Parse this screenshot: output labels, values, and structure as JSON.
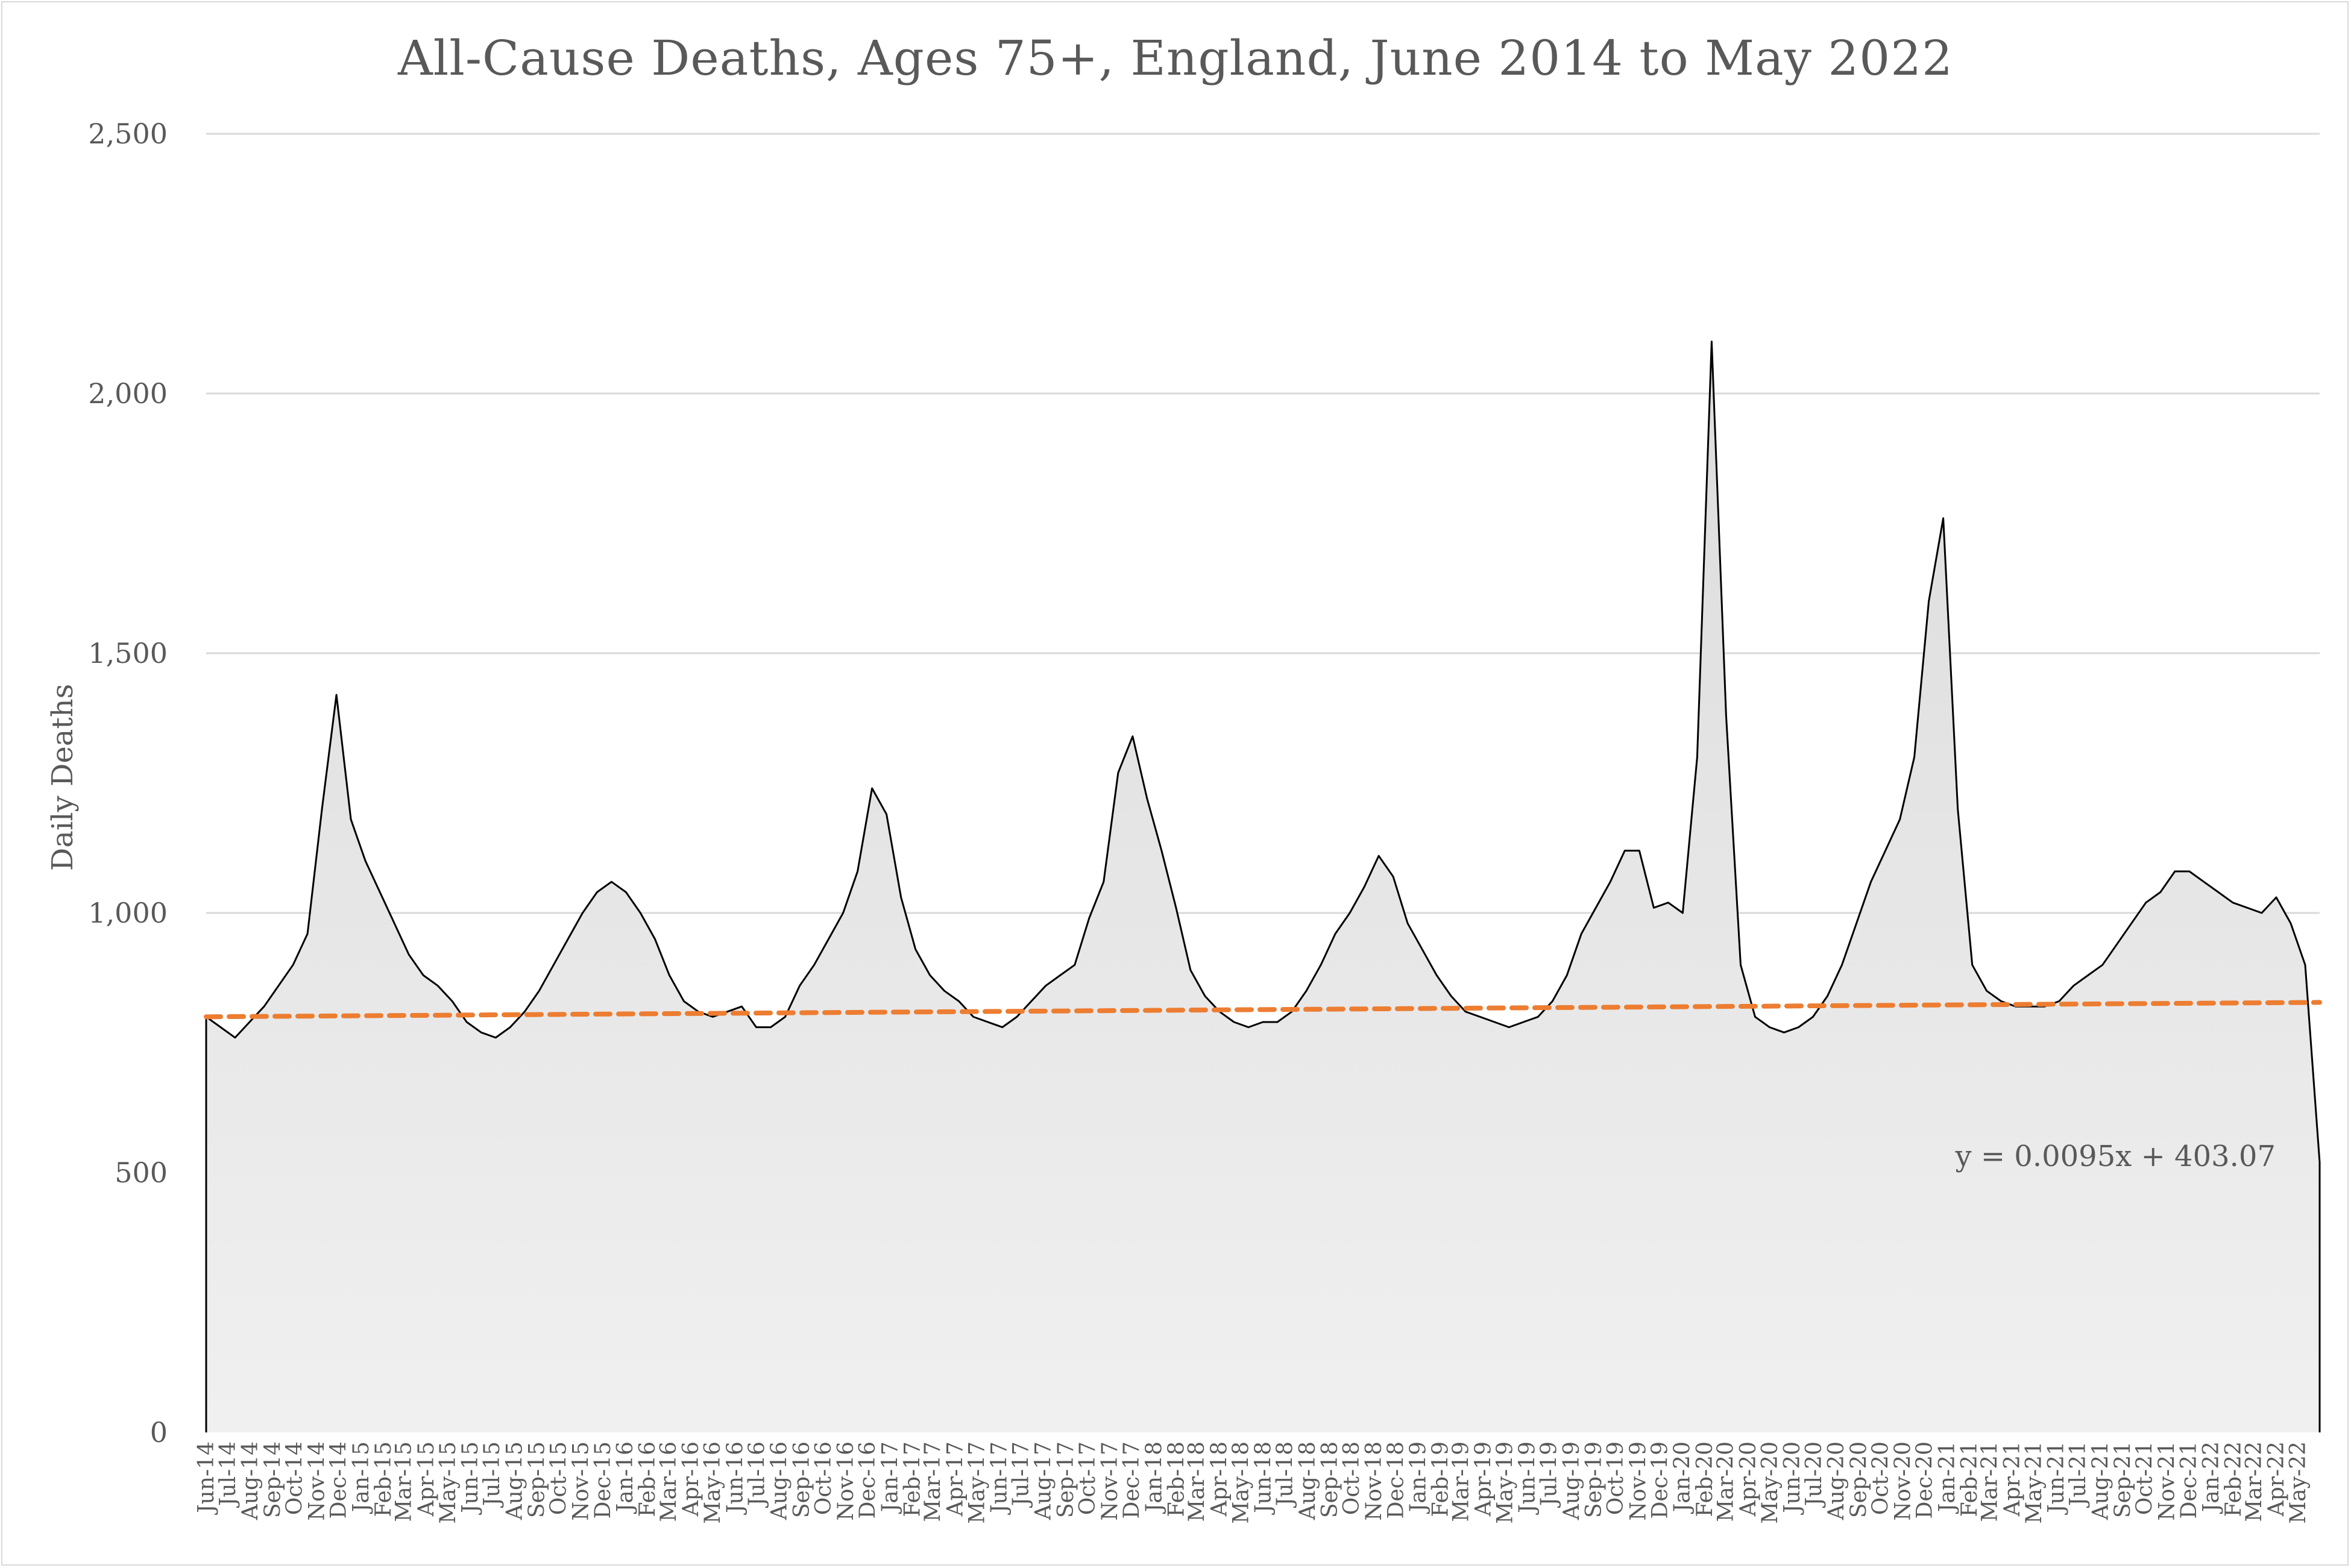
{
  "chart_data": {
    "type": "area",
    "title": "All-Cause Deaths, Ages 75+, England, June 2014 to May 2022",
    "xlabel": "",
    "ylabel": "Daily Deaths",
    "ylim": [
      0,
      2500
    ],
    "yticks": [
      0,
      500,
      1000,
      1500,
      2000,
      2500
    ],
    "ytick_labels": [
      "0",
      "500",
      "1,000",
      "1,500",
      "2,000",
      "2,500"
    ],
    "grid": "horizontal",
    "colors": {
      "line": "#000000",
      "trend": "#ED7D31",
      "fill_top": "#dcdcdc",
      "fill_bottom": "#f0f0f0",
      "grid": "#d9d9d9"
    },
    "x_start": "2014-06-01",
    "x_end": "2022-05-31",
    "xtick_labels": [
      "Jun-14",
      "Jul-14",
      "Aug-14",
      "Sep-14",
      "Oct-14",
      "Nov-14",
      "Dec-14",
      "Jan-15",
      "Feb-15",
      "Mar-15",
      "Apr-15",
      "May-15",
      "Jun-15",
      "Jul-15",
      "Aug-15",
      "Sep-15",
      "Oct-15",
      "Nov-15",
      "Dec-15",
      "Jan-16",
      "Feb-16",
      "Mar-16",
      "Apr-16",
      "May-16",
      "Jun-16",
      "Jul-16",
      "Aug-16",
      "Sep-16",
      "Oct-16",
      "Nov-16",
      "Dec-16",
      "Jan-17",
      "Feb-17",
      "Mar-17",
      "Apr-17",
      "May-17",
      "Jun-17",
      "Jul-17",
      "Aug-17",
      "Sep-17",
      "Oct-17",
      "Nov-17",
      "Dec-17",
      "Jan-18",
      "Feb-18",
      "Mar-18",
      "Apr-18",
      "May-18",
      "Jun-18",
      "Jul-18",
      "Aug-18",
      "Sep-18",
      "Oct-18",
      "Nov-18",
      "Dec-18",
      "Jan-19",
      "Feb-19",
      "Mar-19",
      "Apr-19",
      "May-19",
      "Jun-19",
      "Jul-19",
      "Aug-19",
      "Sep-19",
      "Oct-19",
      "Nov-19",
      "Dec-19",
      "Jan-20",
      "Feb-20",
      "Mar-20",
      "Apr-20",
      "May-20",
      "Jun-20",
      "Jul-20",
      "Aug-20",
      "Sep-20",
      "Oct-20",
      "Nov-20",
      "Dec-20",
      "Jan-21",
      "Feb-21",
      "Mar-21",
      "Apr-21",
      "May-21",
      "Jun-21",
      "Jul-21",
      "Aug-21",
      "Sep-21",
      "Oct-21",
      "Nov-21",
      "Dec-21",
      "Jan-22",
      "Feb-22",
      "Mar-22",
      "Apr-22",
      "May-22"
    ],
    "series": [
      {
        "values": [
          800,
          780,
          760,
          790,
          820,
          860,
          900,
          960,
          1200,
          1420,
          1180,
          1100,
          1040,
          980,
          920,
          880,
          860,
          830,
          790,
          770,
          760,
          780,
          810,
          850,
          900,
          950,
          1000,
          1040,
          1060,
          1040,
          1000,
          950,
          880,
          830,
          810,
          800,
          810,
          820,
          780,
          780,
          800,
          860,
          900,
          950,
          1000,
          1080,
          1240,
          1190,
          1030,
          930,
          880,
          850,
          830,
          800,
          790,
          780,
          800,
          830,
          860,
          880,
          900,
          990,
          1060,
          1270,
          1340,
          1220,
          1120,
          1010,
          890,
          840,
          810,
          790,
          780,
          790,
          790,
          810,
          850,
          900,
          960,
          1000,
          1050,
          1110,
          1070,
          980,
          930,
          880,
          840,
          810,
          800,
          790,
          780,
          790,
          800,
          830,
          880,
          960,
          1010,
          1060,
          1120,
          1120,
          1010,
          1020,
          1000,
          1300,
          2100,
          1380,
          900,
          800,
          780,
          770,
          780,
          800,
          840,
          900,
          980,
          1060,
          1120,
          1180,
          1300,
          1600,
          1760,
          1200,
          900,
          850,
          830,
          820,
          820,
          820,
          830,
          860,
          880,
          900,
          940,
          980,
          1020,
          1040,
          1080,
          1080,
          1060,
          1040,
          1020,
          1010,
          1000,
          1030,
          980,
          900,
          520
        ]
      }
    ],
    "trend_line": {
      "slope": 0.0095,
      "intercept": 403.07,
      "equation_label": "y = 0.0095x + 403.07"
    }
  }
}
